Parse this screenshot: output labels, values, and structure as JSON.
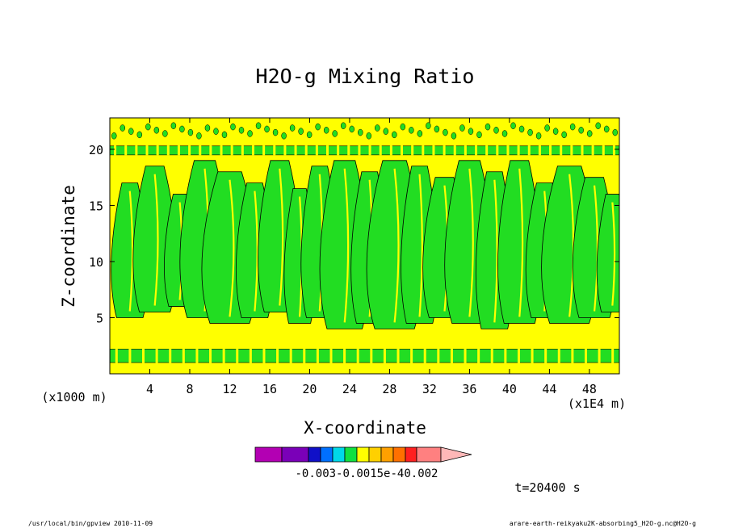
{
  "chart_data": {
    "type": "heatmap",
    "title": "H2O-g Mixing Ratio",
    "xlabel": "X-coordinate",
    "ylabel": "Z-coordinate",
    "x_unit_label": "(x1E4 m)",
    "y_unit_label": "(x1000 m)",
    "xlim": [
      0,
      51
    ],
    "ylim": [
      0,
      22.8
    ],
    "x_ticks": [
      4,
      8,
      12,
      16,
      20,
      24,
      28,
      32,
      36,
      40,
      44,
      48
    ],
    "x_tick_labels": [
      "4",
      "8",
      "12",
      "16",
      "20",
      "24",
      "28",
      "32",
      "36",
      "40",
      "44",
      "48"
    ],
    "y_ticks": [
      5,
      10,
      15,
      20
    ],
    "y_tick_labels": [
      "5",
      "10",
      "15",
      "20"
    ],
    "background_band_color": "#ffff00",
    "moist_band_color": "#22dd22",
    "moist_bands_z": [
      {
        "z_from": 1.0,
        "z_to": 2.2
      },
      {
        "z_from": 19.5,
        "z_to": 20.3
      }
    ],
    "plumes": [
      {
        "x": 2.0,
        "z_top": 17.0,
        "z_bottom": 5.0,
        "half_width": 0.6
      },
      {
        "x": 4.5,
        "z_top": 18.5,
        "z_bottom": 5.5,
        "half_width": 0.7
      },
      {
        "x": 7.0,
        "z_top": 16.0,
        "z_bottom": 6.0,
        "half_width": 0.5
      },
      {
        "x": 9.5,
        "z_top": 19.0,
        "z_bottom": 5.0,
        "half_width": 0.8
      },
      {
        "x": 12.0,
        "z_top": 18.0,
        "z_bottom": 4.5,
        "half_width": 0.9
      },
      {
        "x": 14.5,
        "z_top": 17.0,
        "z_bottom": 5.0,
        "half_width": 0.6
      },
      {
        "x": 17.0,
        "z_top": 19.0,
        "z_bottom": 5.5,
        "half_width": 0.7
      },
      {
        "x": 19.0,
        "z_top": 16.5,
        "z_bottom": 4.5,
        "half_width": 0.5
      },
      {
        "x": 21.0,
        "z_top": 18.5,
        "z_bottom": 5.0,
        "half_width": 0.6
      },
      {
        "x": 23.5,
        "z_top": 19.0,
        "z_bottom": 4.0,
        "half_width": 0.8
      },
      {
        "x": 26.0,
        "z_top": 18.0,
        "z_bottom": 4.5,
        "half_width": 0.6
      },
      {
        "x": 28.5,
        "z_top": 19.0,
        "z_bottom": 4.0,
        "half_width": 0.9
      },
      {
        "x": 31.0,
        "z_top": 18.5,
        "z_bottom": 4.5,
        "half_width": 0.6
      },
      {
        "x": 33.5,
        "z_top": 17.5,
        "z_bottom": 5.0,
        "half_width": 0.7
      },
      {
        "x": 36.0,
        "z_top": 19.0,
        "z_bottom": 4.5,
        "half_width": 0.8
      },
      {
        "x": 38.5,
        "z_top": 18.0,
        "z_bottom": 4.0,
        "half_width": 0.6
      },
      {
        "x": 41.0,
        "z_top": 19.0,
        "z_bottom": 4.5,
        "half_width": 0.7
      },
      {
        "x": 43.5,
        "z_top": 17.0,
        "z_bottom": 5.0,
        "half_width": 0.6
      },
      {
        "x": 46.0,
        "z_top": 18.5,
        "z_bottom": 4.5,
        "half_width": 0.9
      },
      {
        "x": 48.5,
        "z_top": 17.5,
        "z_bottom": 5.0,
        "half_width": 0.7
      },
      {
        "x": 50.3,
        "z_top": 16.0,
        "z_bottom": 5.5,
        "half_width": 0.5
      }
    ],
    "colorbar": {
      "colors": [
        "#b300b3",
        "#7a00b8",
        "#1010c8",
        "#0070ff",
        "#00d8e8",
        "#10e040",
        "#ffff00",
        "#ffd000",
        "#ffa000",
        "#ff7000",
        "#ff2020",
        "#ff8080",
        "#ffb8b8"
      ],
      "tick_labels_text": "-0.003-0.0015e-40.002"
    },
    "time_label": "t=20400 s"
  },
  "footer": {
    "left": "/usr/local/bin/gpview  2010-11-09",
    "right": "arare-earth-reikyaku2K-absorbing5_H2O-g.nc@H2O-g"
  }
}
